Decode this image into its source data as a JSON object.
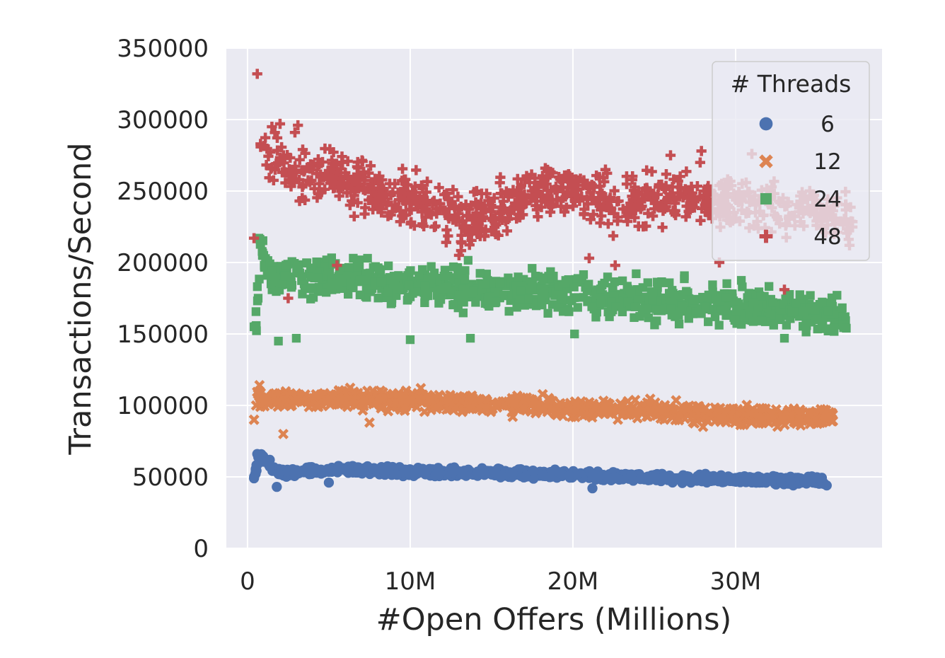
{
  "chart_data": {
    "type": "scatter",
    "title": "",
    "xlabel": "#Open Offers (Millions)",
    "ylabel": "Transactions/Second",
    "xlim": [
      -1.3,
      39
    ],
    "ylim": [
      0,
      350000
    ],
    "x_ticks": [
      0,
      10,
      20,
      30
    ],
    "x_tick_labels": [
      "0",
      "10M",
      "20M",
      "30M"
    ],
    "y_ticks": [
      0,
      50000,
      100000,
      150000,
      200000,
      250000,
      300000,
      350000
    ],
    "y_tick_labels": [
      "0",
      "50000",
      "100000",
      "150000",
      "200000",
      "250000",
      "300000",
      "350000"
    ],
    "grid": true,
    "legend": {
      "title": "# Threads",
      "placement": "top-right"
    },
    "series": [
      {
        "name": "6",
        "color": "#4c72b0",
        "marker": "circle",
        "trend": [
          [
            0.4,
            49000
          ],
          [
            0.7,
            65000
          ],
          [
            1.2,
            60000
          ],
          [
            2,
            53000
          ],
          [
            4,
            54000
          ],
          [
            6,
            55000
          ],
          [
            10,
            53500
          ],
          [
            15,
            52500
          ],
          [
            20,
            51500
          ],
          [
            25,
            49500
          ],
          [
            30,
            48500
          ],
          [
            35.5,
            47000
          ]
        ],
        "spread": 2500,
        "outliers": [
          [
            0.4,
            49000
          ],
          [
            0.6,
            66000
          ],
          [
            1.8,
            43000
          ],
          [
            21.2,
            42000
          ],
          [
            35.6,
            44000
          ],
          [
            5,
            46000
          ]
        ]
      },
      {
        "name": "12",
        "color": "#dd8452",
        "marker": "x",
        "trend": [
          [
            0.4,
            90000
          ],
          [
            0.6,
            110000
          ],
          [
            1,
            102000
          ],
          [
            2,
            104000
          ],
          [
            5,
            105000
          ],
          [
            10,
            103500
          ],
          [
            15,
            101500
          ],
          [
            20,
            98000
          ],
          [
            25,
            96000
          ],
          [
            30,
            93000
          ],
          [
            36,
            92000
          ]
        ],
        "spread": 5500,
        "outliers": [
          [
            0.4,
            90000
          ],
          [
            2.2,
            80000
          ],
          [
            7.5,
            88000
          ],
          [
            28,
            85000
          ],
          [
            34,
            86000
          ],
          [
            16.3,
            92000
          ]
        ]
      },
      {
        "name": "24",
        "color": "#55a868",
        "marker": "square",
        "trend": [
          [
            0.5,
            155000
          ],
          [
            0.8,
            217000
          ],
          [
            1.2,
            192000
          ],
          [
            3,
            190000
          ],
          [
            5,
            189000
          ],
          [
            10,
            184000
          ],
          [
            15,
            181000
          ],
          [
            20,
            178000
          ],
          [
            25,
            173000
          ],
          [
            30,
            170000
          ],
          [
            35,
            165000
          ],
          [
            37,
            160000
          ]
        ],
        "spread": 12000,
        "outliers": [
          [
            0.4,
            155000
          ],
          [
            0.7,
            217000
          ],
          [
            1.9,
            145000
          ],
          [
            3,
            147000
          ],
          [
            10,
            146000
          ],
          [
            13.7,
            147000
          ],
          [
            20.1,
            150000
          ],
          [
            33,
            147000
          ],
          [
            1,
            205000
          ],
          [
            6.5,
            203000
          ]
        ]
      },
      {
        "name": "48",
        "color": "#c44e52",
        "marker": "plus",
        "trend": [
          [
            0.8,
            290000
          ],
          [
            1.5,
            270000
          ],
          [
            3,
            265000
          ],
          [
            5,
            262000
          ],
          [
            7,
            255000
          ],
          [
            9,
            245000
          ],
          [
            11,
            242000
          ],
          [
            13,
            228000
          ],
          [
            15,
            235000
          ],
          [
            17,
            248000
          ],
          [
            19,
            252000
          ],
          [
            21,
            248000
          ],
          [
            23,
            240000
          ],
          [
            25,
            246000
          ],
          [
            27,
            244000
          ],
          [
            29,
            242000
          ],
          [
            31,
            240000
          ],
          [
            33,
            238000
          ],
          [
            35,
            236000
          ],
          [
            37.2,
            228000
          ]
        ],
        "spread": 16000,
        "outliers": [
          [
            0.6,
            332000
          ],
          [
            0.8,
            283000
          ],
          [
            1.5,
            295000
          ],
          [
            2,
            297000
          ],
          [
            3.1,
            296000
          ],
          [
            0.4,
            217000
          ],
          [
            21,
            203000
          ],
          [
            22.6,
            198000
          ],
          [
            27.9,
            278000
          ],
          [
            31,
            276000
          ],
          [
            29,
            200000
          ],
          [
            5.5,
            198000
          ],
          [
            2.5,
            175000
          ],
          [
            33,
            181000
          ],
          [
            37,
            212000
          ],
          [
            26,
            275000
          ],
          [
            22,
            265000
          ],
          [
            13,
            205000
          ]
        ]
      }
    ]
  }
}
